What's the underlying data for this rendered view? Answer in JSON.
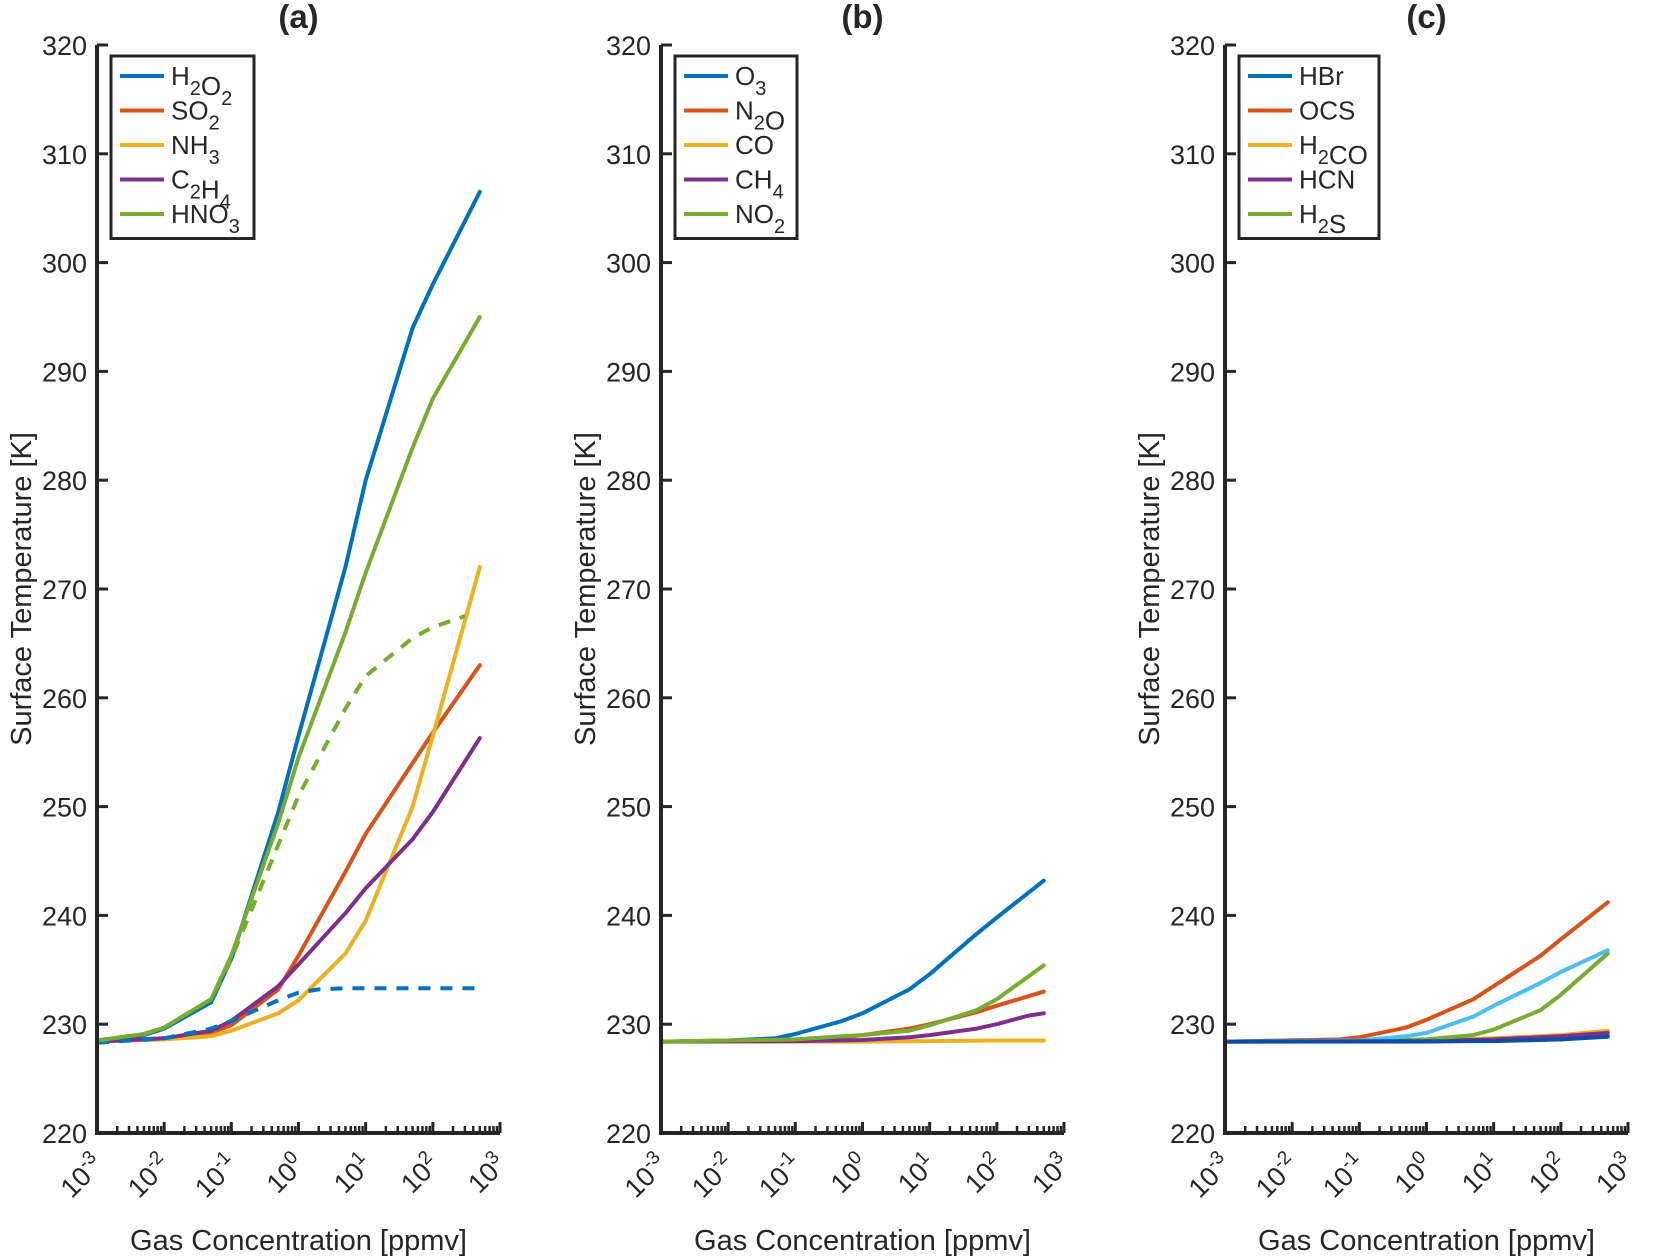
{
  "figure": {
    "panel_count": 3
  },
  "colors": {
    "axis": "#262626",
    "blue": "#0072BD",
    "orange": "#D95319",
    "yellow": "#EDB120",
    "purple": "#7E2F8E",
    "green": "#77AC30",
    "lightblue": "#4DBEEE",
    "darkblue": "#0E4CA6"
  },
  "chart_data": [
    {
      "type": "line",
      "title": "(a)",
      "xlabel": "Gas Concentration [ppmv]",
      "ylabel": "Surface Temperature [K]",
      "xscale": "log",
      "xlim": [
        0.001,
        1000
      ],
      "ylim": [
        220,
        320
      ],
      "yticks": [
        220,
        230,
        240,
        250,
        260,
        270,
        280,
        290,
        300,
        310,
        320
      ],
      "xticks": [
        {
          "base": "10",
          "exp": "-3",
          "value": 0.001
        },
        {
          "base": "10",
          "exp": "-2",
          "value": 0.01
        },
        {
          "base": "10",
          "exp": "-1",
          "value": 0.1
        },
        {
          "base": "10",
          "exp": "0",
          "value": 1
        },
        {
          "base": "10",
          "exp": "1",
          "value": 10
        },
        {
          "base": "10",
          "exp": "2",
          "value": 100
        },
        {
          "base": "10",
          "exp": "3",
          "value": 1000
        }
      ],
      "legend": {
        "location": "top-left"
      },
      "series": [
        {
          "name": "H2O2",
          "label": [
            {
              "t": "H"
            },
            {
              "s": "2"
            },
            {
              "t": "O"
            },
            {
              "s": "2"
            }
          ],
          "color": "blue",
          "legend": true,
          "x": [
            0.001,
            0.005,
            0.01,
            0.05,
            0.1,
            0.5,
            1,
            5,
            10,
            50,
            100,
            500
          ],
          "y": [
            228.4,
            229.0,
            229.6,
            232.0,
            236.0,
            249.5,
            256.5,
            272.0,
            280.0,
            294.0,
            298.0,
            306.5
          ]
        },
        {
          "name": "SO2",
          "label": [
            {
              "t": "SO"
            },
            {
              "s": "2"
            }
          ],
          "color": "orange",
          "legend": true,
          "x": [
            0.001,
            0.01,
            0.05,
            0.1,
            0.5,
            1,
            5,
            10,
            50,
            100,
            500
          ],
          "y": [
            228.4,
            228.7,
            229.2,
            229.9,
            233.2,
            236.3,
            244.0,
            247.5,
            254.0,
            256.8,
            263.0
          ]
        },
        {
          "name": "NH3",
          "label": [
            {
              "t": "NH"
            },
            {
              "s": "3"
            }
          ],
          "color": "yellow",
          "legend": true,
          "x": [
            0.001,
            0.01,
            0.05,
            0.1,
            0.5,
            1,
            5,
            10,
            50,
            100,
            500
          ],
          "y": [
            228.4,
            228.6,
            228.9,
            229.4,
            231.0,
            232.2,
            236.5,
            239.5,
            250.0,
            256.5,
            272.0
          ]
        },
        {
          "name": "C2H4",
          "label": [
            {
              "t": "C"
            },
            {
              "s": "2"
            },
            {
              "t": "H"
            },
            {
              "s": "4"
            }
          ],
          "color": "purple",
          "legend": true,
          "x": [
            0.001,
            0.01,
            0.05,
            0.1,
            0.5,
            1,
            5,
            10,
            50,
            100,
            500
          ],
          "y": [
            228.4,
            228.7,
            229.4,
            230.3,
            233.5,
            235.5,
            240.2,
            242.5,
            247.0,
            249.5,
            256.3
          ]
        },
        {
          "name": "HNO3",
          "label": [
            {
              "t": "HNO"
            },
            {
              "s": "3"
            }
          ],
          "color": "green",
          "legend": true,
          "x": [
            0.001,
            0.005,
            0.01,
            0.05,
            0.1,
            0.5,
            1,
            5,
            10,
            50,
            100,
            500
          ],
          "y": [
            228.5,
            229.1,
            229.7,
            232.3,
            236.3,
            248.5,
            254.5,
            266.0,
            271.5,
            283.0,
            287.5,
            295.0
          ]
        },
        {
          "name": "H2O2 (dashed)",
          "color": "blue",
          "dashed": true,
          "legend": false,
          "x": [
            0.001,
            0.01,
            0.05,
            0.1,
            0.5,
            1,
            2,
            5,
            10,
            50,
            100,
            500
          ],
          "y": [
            228.3,
            228.7,
            229.6,
            230.3,
            232.2,
            232.9,
            233.2,
            233.3,
            233.3,
            233.3,
            233.3,
            233.3
          ]
        },
        {
          "name": "HNO3 (dashed)",
          "color": "green",
          "dashed": true,
          "legend": false,
          "x": [
            0.001,
            0.005,
            0.01,
            0.05,
            0.1,
            0.5,
            1,
            5,
            10,
            50,
            100,
            300
          ],
          "y": [
            228.5,
            229.1,
            229.7,
            232.3,
            236.0,
            246.5,
            251.0,
            259.0,
            262.0,
            265.5,
            266.5,
            267.5
          ]
        }
      ]
    },
    {
      "type": "line",
      "title": "(b)",
      "xlabel": "Gas Concentration [ppmv]",
      "ylabel": "Surface Temperature [K]",
      "xscale": "log",
      "xlim": [
        0.001,
        1000
      ],
      "ylim": [
        220,
        320
      ],
      "yticks": [
        220,
        230,
        240,
        250,
        260,
        270,
        280,
        290,
        300,
        310,
        320
      ],
      "xticks": [
        {
          "base": "10",
          "exp": "-3",
          "value": 0.001
        },
        {
          "base": "10",
          "exp": "-2",
          "value": 0.01
        },
        {
          "base": "10",
          "exp": "-1",
          "value": 0.1
        },
        {
          "base": "10",
          "exp": "0",
          "value": 1
        },
        {
          "base": "10",
          "exp": "1",
          "value": 10
        },
        {
          "base": "10",
          "exp": "2",
          "value": 100
        },
        {
          "base": "10",
          "exp": "3",
          "value": 1000
        }
      ],
      "legend": {
        "location": "top-left"
      },
      "series": [
        {
          "name": "O3",
          "label": [
            {
              "t": "O"
            },
            {
              "s": "3"
            }
          ],
          "color": "blue",
          "legend": true,
          "x": [
            0.001,
            0.01,
            0.05,
            0.1,
            0.5,
            1,
            5,
            10,
            50,
            100,
            500
          ],
          "y": [
            228.4,
            228.5,
            228.7,
            229.1,
            230.3,
            231.0,
            233.2,
            234.6,
            238.3,
            239.8,
            243.2
          ]
        },
        {
          "name": "N2O",
          "label": [
            {
              "t": "N"
            },
            {
              "s": "2"
            },
            {
              "t": "O"
            }
          ],
          "color": "orange",
          "legend": true,
          "x": [
            0.001,
            0.1,
            0.5,
            1,
            5,
            10,
            50,
            100,
            500
          ],
          "y": [
            228.4,
            228.5,
            228.8,
            229.0,
            229.6,
            230.0,
            231.1,
            231.7,
            233.0
          ]
        },
        {
          "name": "CO",
          "label": [
            {
              "t": "CO"
            }
          ],
          "color": "yellow",
          "legend": true,
          "x": [
            0.001,
            1,
            10,
            100,
            500
          ],
          "y": [
            228.4,
            228.4,
            228.45,
            228.5,
            228.5
          ]
        },
        {
          "name": "CH4",
          "label": [
            {
              "t": "CH"
            },
            {
              "s": "4"
            }
          ],
          "color": "purple",
          "legend": true,
          "x": [
            0.001,
            0.1,
            1,
            5,
            10,
            50,
            100,
            300,
            500
          ],
          "y": [
            228.4,
            228.45,
            228.55,
            228.8,
            229.0,
            229.6,
            230.0,
            230.8,
            231.0
          ]
        },
        {
          "name": "NO2",
          "label": [
            {
              "t": "NO"
            },
            {
              "s": "2"
            }
          ],
          "color": "green",
          "legend": true,
          "x": [
            0.001,
            0.1,
            0.5,
            1,
            5,
            10,
            50,
            100,
            500
          ],
          "y": [
            228.4,
            228.6,
            228.9,
            229.0,
            229.4,
            229.9,
            231.3,
            232.3,
            235.4
          ]
        }
      ]
    },
    {
      "type": "line",
      "title": "(c)",
      "xlabel": "Gas Concentration [ppmv]",
      "ylabel": "Surface Temperature [K]",
      "xscale": "log",
      "xlim": [
        0.001,
        1000
      ],
      "ylim": [
        220,
        320
      ],
      "yticks": [
        220,
        230,
        240,
        250,
        260,
        270,
        280,
        290,
        300,
        310,
        320
      ],
      "xticks": [
        {
          "base": "10",
          "exp": "-3",
          "value": 0.001
        },
        {
          "base": "10",
          "exp": "-2",
          "value": 0.01
        },
        {
          "base": "10",
          "exp": "-1",
          "value": 0.1
        },
        {
          "base": "10",
          "exp": "0",
          "value": 1
        },
        {
          "base": "10",
          "exp": "1",
          "value": 10
        },
        {
          "base": "10",
          "exp": "2",
          "value": 100
        },
        {
          "base": "10",
          "exp": "3",
          "value": 1000
        }
      ],
      "legend": {
        "location": "top-left"
      },
      "series": [
        {
          "name": "HBr",
          "label": [
            {
              "t": "HBr"
            }
          ],
          "color": "blue",
          "legend": true,
          "x": [
            0.001,
            1,
            10,
            100,
            500
          ],
          "y": [
            228.4,
            228.4,
            228.5,
            228.6,
            228.9
          ]
        },
        {
          "name": "OCS",
          "label": [
            {
              "t": "OCS"
            }
          ],
          "color": "orange",
          "legend": true,
          "x": [
            0.001,
            0.05,
            0.1,
            0.5,
            1,
            5,
            10,
            50,
            100,
            500
          ],
          "y": [
            228.4,
            228.6,
            228.8,
            229.7,
            230.4,
            232.3,
            233.5,
            236.3,
            237.8,
            241.2
          ]
        },
        {
          "name": "H2CO",
          "label": [
            {
              "t": "H"
            },
            {
              "s": "2"
            },
            {
              "t": "CO"
            }
          ],
          "color": "yellow",
          "legend": true,
          "x": [
            0.001,
            1,
            10,
            100,
            500
          ],
          "y": [
            228.4,
            228.45,
            228.7,
            229.0,
            229.4
          ]
        },
        {
          "name": "HCN",
          "label": [
            {
              "t": "HCN"
            }
          ],
          "color": "purple",
          "legend": true,
          "x": [
            0.001,
            1,
            10,
            100,
            500
          ],
          "y": [
            228.4,
            228.45,
            228.6,
            228.9,
            229.2
          ]
        },
        {
          "name": "H2S",
          "label": [
            {
              "t": "H"
            },
            {
              "s": "2"
            },
            {
              "t": "S"
            }
          ],
          "color": "green",
          "legend": true,
          "x": [
            0.001,
            0.1,
            1,
            5,
            10,
            50,
            100,
            500
          ],
          "y": [
            228.4,
            228.45,
            228.6,
            229.0,
            229.5,
            231.3,
            232.7,
            236.5
          ]
        },
        {
          "name": "unlabeled",
          "color": "lightblue",
          "legend": false,
          "x": [
            0.001,
            0.1,
            0.5,
            1,
            5,
            10,
            50,
            100,
            500
          ],
          "y": [
            228.4,
            228.5,
            228.9,
            229.2,
            230.7,
            231.7,
            233.8,
            234.8,
            236.8
          ]
        },
        {
          "name": "unlabeled-dark",
          "color": "darkblue",
          "legend": false,
          "x": [
            0.001,
            10,
            100,
            500
          ],
          "y": [
            228.4,
            228.45,
            228.6,
            228.85
          ]
        }
      ]
    }
  ]
}
